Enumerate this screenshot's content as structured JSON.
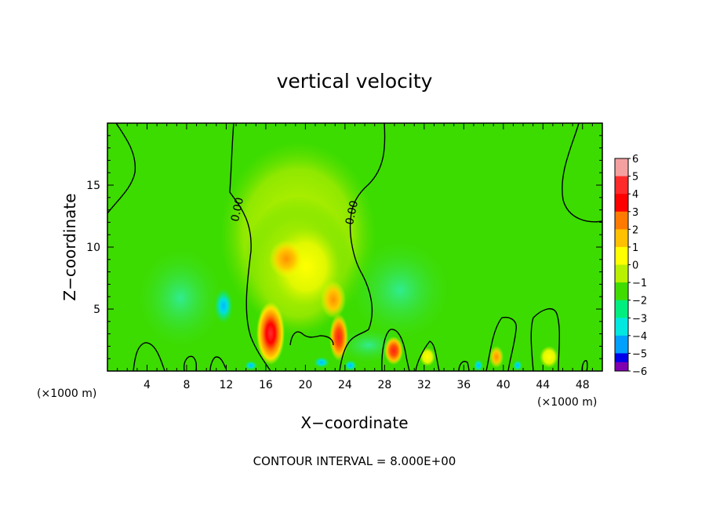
{
  "chart_data": {
    "type": "heatmap",
    "title": "vertical velocity",
    "xlabel": "X−coordinate",
    "ylabel": "Z−coordinate",
    "x_unit": "(×1000 m)",
    "xlim": [
      0,
      50
    ],
    "ylim": [
      0,
      20
    ],
    "x_ticks": [
      4,
      8,
      12,
      16,
      20,
      24,
      28,
      32,
      36,
      40,
      44,
      48
    ],
    "y_ticks": [
      5,
      10,
      15
    ],
    "contour_label": "0.00",
    "footer": "CONTOUR INTERVAL = 8.000E+00",
    "colorbar": {
      "levels": [
        6,
        5,
        4,
        3,
        2,
        1,
        0,
        -1,
        -2,
        -3,
        -4,
        -5,
        -6
      ],
      "labels": [
        "6",
        "5",
        "4",
        "3",
        "2",
        "1",
        "0",
        "−1",
        "−2",
        "−3",
        "−4",
        "−5",
        "−6"
      ],
      "colors": [
        "#f4a0a0",
        "#ff2a2a",
        "#ff0000",
        "#ff7a00",
        "#ffc000",
        "#ffff00",
        "#b8f000",
        "#40dc00",
        "#00ee80",
        "#00e8e0",
        "#00a0ff",
        "#0000e8",
        "#000090",
        "#8000b0"
      ]
    },
    "features": [
      {
        "x": 16.8,
        "z": 2.8,
        "value": 5.0
      },
      {
        "x": 23.6,
        "z": 2.5,
        "value": 4.2
      },
      {
        "x": 23.0,
        "z": 6.5,
        "value": 3.0
      },
      {
        "x": 18.0,
        "z": 8.0,
        "value": 1.8
      },
      {
        "x": 29.0,
        "z": 1.8,
        "value": 3.5
      },
      {
        "x": 39.7,
        "z": 1.3,
        "value": 3.0
      },
      {
        "x": 11.5,
        "z": 5.0,
        "value": -2.0
      },
      {
        "x": 37.5,
        "z": 0.5,
        "value": -3.0
      },
      {
        "x": 25.0,
        "z": 0.4,
        "value": -2.0
      }
    ]
  }
}
